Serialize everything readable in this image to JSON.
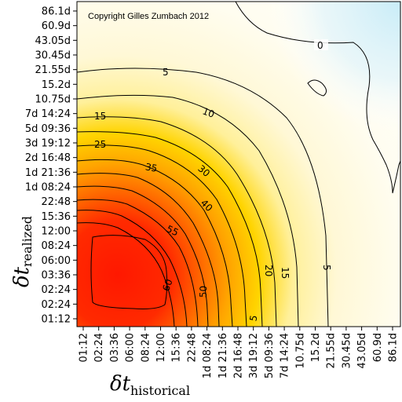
{
  "chart_data": {
    "type": "heatmap",
    "title": "",
    "annotation": "Copyright Gilles Zumbach 2012",
    "xlabel": {
      "symbol": "δt",
      "subscript": "historical"
    },
    "ylabel": {
      "symbol": "δt",
      "subscript": "realized"
    },
    "x_ticks": [
      "01:12",
      "02:24",
      "03:36",
      "06:00",
      "08:24",
      "12:00",
      "15:36",
      "22:48",
      "1d 08:24",
      "1d 21:36",
      "2d 16:48",
      "3d 19:12",
      "5d 09:36",
      "7d 14:24",
      "10.75d",
      "15.2d",
      "21.55d",
      "30.45d",
      "43.05d",
      "60.9d",
      "86.1d"
    ],
    "y_ticks": [
      "01:12",
      "02:24",
      "02:24",
      "03:36",
      "06:00",
      "08:24",
      "12:00",
      "15:36",
      "22:48",
      "1d 08:24",
      "1d 21:36",
      "2d 16:48",
      "3d 19:12",
      "5d 09:36",
      "7d 14:24",
      "10.75d",
      "15.2d",
      "21.55d",
      "30.45d",
      "43.05d",
      "60.9d",
      "86.1d"
    ],
    "contour_levels": [
      0,
      5,
      10,
      15,
      20,
      25,
      30,
      35,
      40,
      45,
      50,
      55,
      60
    ],
    "contour_labels": [
      {
        "text": "0",
        "x": "43.05d",
        "y": "43.05d"
      },
      {
        "text": "5",
        "x": "06:00",
        "y": "21.55d"
      },
      {
        "text": "10",
        "x": "1d 21:36",
        "y": "7d 14:24"
      },
      {
        "text": "15",
        "x": "02:24",
        "y": "5d 09:36"
      },
      {
        "text": "25",
        "x": "02:24",
        "y": "3d 19:12"
      },
      {
        "text": "35",
        "x": "08:24",
        "y": "1d 21:36"
      },
      {
        "text": "30",
        "x": "1d 08:24",
        "y": "1d 21:36"
      },
      {
        "text": "40",
        "x": "1d 08:24",
        "y": "15.36"
      },
      {
        "text": "55",
        "x": "15:36",
        "y": "12:00"
      },
      {
        "text": "60",
        "x": "12:00",
        "y": "02:24"
      },
      {
        "text": "50",
        "x": "22:48",
        "y": "02:24"
      },
      {
        "text": "20",
        "x": "5d 09:36",
        "y": "06:00"
      },
      {
        "text": "15",
        "x": "7d 14:24",
        "y": "06:00"
      },
      {
        "text": "5",
        "x": "21.55d",
        "y": "06:00"
      },
      {
        "text": "5",
        "x": "3d 19:12",
        "y": "01:12"
      }
    ],
    "value_peak": {
      "x": "03:36",
      "y": "03:36",
      "approx": 62
    },
    "colormap": {
      "high": "#ff1a00",
      "mid": "#ffd200",
      "low": "#fff8d8",
      "negative": "#d4eef7"
    }
  }
}
